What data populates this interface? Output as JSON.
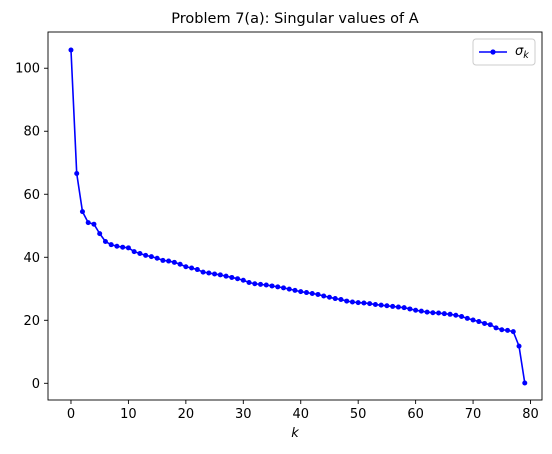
{
  "chart_data": {
    "type": "line",
    "title": "Problem 7(a): Singular values of A",
    "xlabel": "k",
    "ylabel": "",
    "xlim": [
      -4,
      82
    ],
    "ylim": [
      -5.3,
      111.5
    ],
    "xticks": [
      0,
      10,
      20,
      30,
      40,
      50,
      60,
      70,
      80
    ],
    "yticks": [
      0,
      20,
      40,
      60,
      80,
      100
    ],
    "grid": false,
    "legend": {
      "position": "top-right"
    },
    "colors": {
      "series": "#0000ff"
    },
    "series": [
      {
        "name": "σ_k",
        "x": [
          0,
          1,
          2,
          3,
          4,
          5,
          6,
          7,
          8,
          9,
          10,
          11,
          12,
          13,
          14,
          15,
          16,
          17,
          18,
          19,
          20,
          21,
          22,
          23,
          24,
          25,
          26,
          27,
          28,
          29,
          30,
          31,
          32,
          33,
          34,
          35,
          36,
          37,
          38,
          39,
          40,
          41,
          42,
          43,
          44,
          45,
          46,
          47,
          48,
          49,
          50,
          51,
          52,
          53,
          54,
          55,
          56,
          57,
          58,
          59,
          60,
          61,
          62,
          63,
          64,
          65,
          66,
          67,
          68,
          69,
          70,
          71,
          72,
          73,
          74,
          75,
          76,
          77,
          78,
          79
        ],
        "values": [
          105.8,
          66.6,
          54.5,
          51.0,
          50.5,
          47.5,
          45.0,
          44.0,
          43.5,
          43.2,
          43.0,
          41.8,
          41.2,
          40.6,
          40.2,
          39.7,
          39.0,
          38.8,
          38.4,
          37.8,
          37.0,
          36.6,
          36.1,
          35.3,
          35.0,
          34.7,
          34.4,
          34.0,
          33.6,
          33.2,
          32.7,
          32.0,
          31.6,
          31.4,
          31.2,
          30.9,
          30.6,
          30.3,
          29.9,
          29.5,
          29.1,
          28.8,
          28.5,
          28.2,
          27.7,
          27.3,
          26.9,
          26.6,
          26.1,
          25.8,
          25.6,
          25.5,
          25.3,
          25.0,
          24.8,
          24.6,
          24.4,
          24.2,
          24.0,
          23.6,
          23.2,
          22.9,
          22.6,
          22.4,
          22.3,
          22.1,
          21.9,
          21.6,
          21.2,
          20.6,
          20.1,
          19.6,
          19.0,
          18.6,
          17.6,
          17.0,
          16.8,
          16.4,
          11.8,
          0.1
        ]
      }
    ]
  }
}
